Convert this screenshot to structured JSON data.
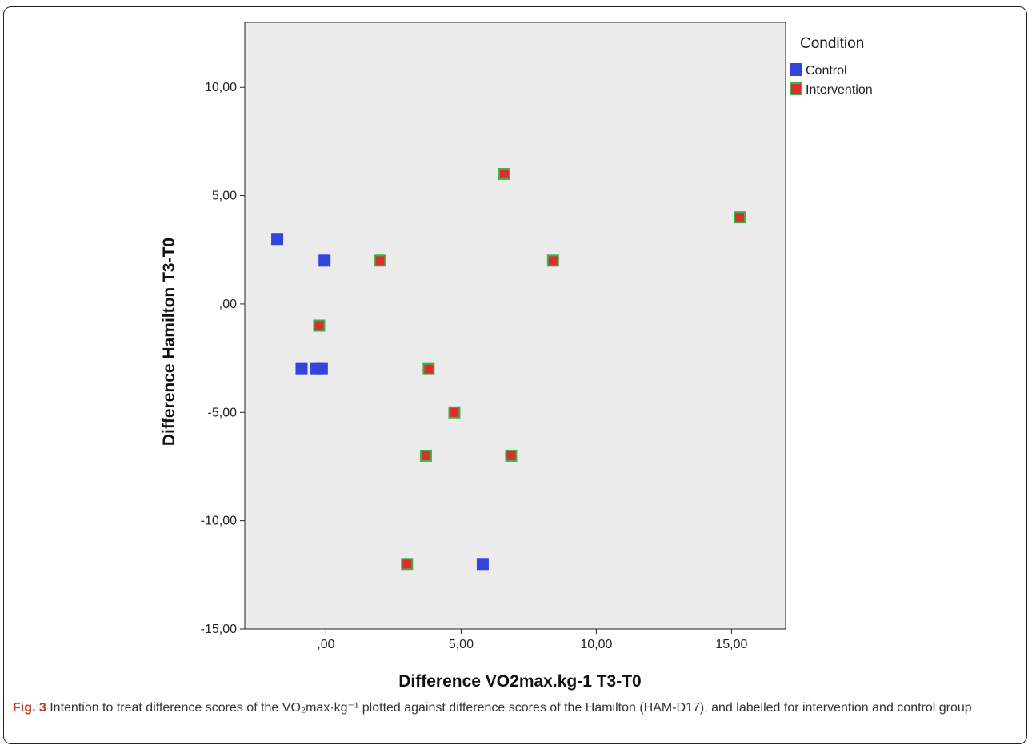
{
  "chart_data": {
    "type": "scatter",
    "title": "",
    "xlabel": "Difference VO2max.kg-1 T3-T0",
    "ylabel": "Difference Hamilton T3-T0",
    "xlim": [
      -3,
      17
    ],
    "ylim": [
      -15,
      13
    ],
    "x_ticks": [
      0,
      5,
      10,
      15
    ],
    "x_tick_labels": [
      ",00",
      "5,00",
      "10,00",
      "15,00"
    ],
    "y_ticks": [
      -15,
      -10,
      -5,
      0,
      5,
      10
    ],
    "y_tick_labels": [
      "-15,00",
      "-10,00",
      "-5,00",
      ",00",
      "5,00",
      "10,00"
    ],
    "plot_background": "#ebebeb",
    "legend": {
      "title": "Condition",
      "placement": "top-right outside"
    },
    "series": [
      {
        "name": "Control",
        "color": "#3344dd",
        "edge": "#3344dd",
        "points": [
          {
            "x": -1.8,
            "y": 3
          },
          {
            "x": -0.05,
            "y": 2
          },
          {
            "x": -0.9,
            "y": -3
          },
          {
            "x": -0.35,
            "y": -3
          },
          {
            "x": -0.15,
            "y": -3
          },
          {
            "x": 5.8,
            "y": -12
          }
        ]
      },
      {
        "name": "Intervention",
        "color": "#dd2e2e",
        "edge": "#3fb04a",
        "points": [
          {
            "x": 6.6,
            "y": 6
          },
          {
            "x": 15.3,
            "y": 4
          },
          {
            "x": 2.0,
            "y": 2
          },
          {
            "x": 8.4,
            "y": 2
          },
          {
            "x": -0.25,
            "y": -1
          },
          {
            "x": 3.8,
            "y": -3
          },
          {
            "x": 4.75,
            "y": -5
          },
          {
            "x": 3.7,
            "y": -7
          },
          {
            "x": 6.85,
            "y": -7
          },
          {
            "x": 3.0,
            "y": -12
          }
        ]
      }
    ]
  },
  "caption": {
    "label": "Fig. 3",
    "text": " Intention to treat difference scores of the VO₂max·kg⁻¹ plotted against difference scores of the Hamilton (HAM-D17), and labelled for intervention and control group"
  }
}
